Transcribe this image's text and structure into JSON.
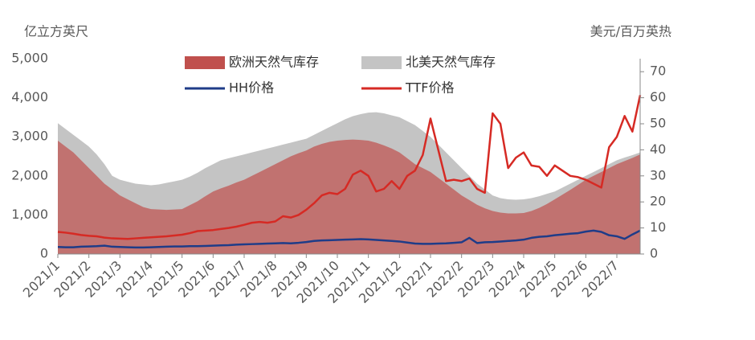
{
  "chart_data": {
    "type": "line",
    "y_label": "亿立方英尺",
    "y2_label": "美元/百万英热",
    "categories": [
      "2021/1",
      null,
      null,
      null,
      "2021/2",
      null,
      null,
      null,
      "2021/3",
      null,
      null,
      null,
      "2021/4",
      null,
      null,
      null,
      "2021/5",
      null,
      null,
      null,
      "2021/6",
      null,
      null,
      null,
      "2021/7",
      null,
      null,
      null,
      "2021/8",
      null,
      null,
      null,
      "2021/9",
      null,
      null,
      null,
      "2021/10",
      null,
      null,
      null,
      "2021/11",
      null,
      null,
      null,
      "2021/12",
      null,
      null,
      null,
      "2022/1",
      null,
      null,
      null,
      "2022/2",
      null,
      null,
      null,
      "2022/3",
      null,
      null,
      null,
      "2022/4",
      null,
      null,
      null,
      "2022/5",
      null,
      null,
      null,
      "2022/6",
      null,
      null,
      null,
      "2022/7",
      null,
      null,
      null
    ],
    "ylim": [
      0,
      5000
    ],
    "yticks": [
      0,
      {
        "value": 1000,
        "label": "1,000"
      },
      {
        "value": 2000,
        "label": "2,000"
      },
      {
        "value": 3000,
        "label": "3,000"
      },
      {
        "value": 4000,
        "label": "4,000"
      },
      {
        "value": 5000,
        "label": "5,000"
      }
    ],
    "y2lim": [
      0,
      75
    ],
    "y2ticks": [
      0,
      10,
      20,
      30,
      40,
      50,
      60,
      70
    ],
    "series": [
      {
        "name": "北美天然气库存",
        "type": "area",
        "color": "#c4c4c4",
        "values": [
          3350,
          3200,
          3050,
          2900,
          2750,
          2550,
          2300,
          2000,
          1900,
          1850,
          1800,
          1780,
          1760,
          1780,
          1820,
          1860,
          1900,
          1980,
          2080,
          2200,
          2300,
          2400,
          2450,
          2500,
          2550,
          2600,
          2650,
          2700,
          2750,
          2800,
          2850,
          2900,
          2950,
          3050,
          3150,
          3250,
          3350,
          3450,
          3530,
          3580,
          3620,
          3630,
          3600,
          3550,
          3500,
          3400,
          3300,
          3150,
          3000,
          2800,
          2600,
          2400,
          2200,
          2000,
          1800,
          1650,
          1500,
          1430,
          1400,
          1390,
          1400,
          1430,
          1480,
          1540,
          1600,
          1700,
          1800,
          1900,
          2000,
          2100,
          2200,
          2300,
          2400,
          2470,
          2530,
          2600
        ]
      },
      {
        "name": "欧洲天然气库存",
        "type": "area",
        "color": "#c0504d",
        "values": [
          2900,
          2750,
          2600,
          2400,
          2200,
          2000,
          1800,
          1650,
          1500,
          1400,
          1300,
          1200,
          1150,
          1140,
          1130,
          1140,
          1150,
          1250,
          1350,
          1480,
          1600,
          1680,
          1750,
          1830,
          1900,
          2000,
          2100,
          2200,
          2300,
          2400,
          2500,
          2580,
          2650,
          2750,
          2820,
          2870,
          2900,
          2920,
          2930,
          2920,
          2900,
          2850,
          2780,
          2700,
          2600,
          2450,
          2300,
          2200,
          2100,
          1950,
          1800,
          1650,
          1500,
          1380,
          1260,
          1170,
          1100,
          1060,
          1040,
          1040,
          1050,
          1100,
          1180,
          1280,
          1400,
          1520,
          1640,
          1770,
          1900,
          2000,
          2100,
          2200,
          2300,
          2380,
          2460,
          2550
        ]
      },
      {
        "name": "HH价格",
        "type": "line",
        "axis": "y2",
        "color": "#1f3c88",
        "values": [
          2.7,
          2.6,
          2.6,
          2.8,
          2.9,
          3.0,
          3.2,
          2.8,
          2.7,
          2.6,
          2.5,
          2.5,
          2.6,
          2.7,
          2.8,
          2.9,
          2.9,
          3.0,
          3.0,
          3.1,
          3.2,
          3.3,
          3.4,
          3.6,
          3.7,
          3.8,
          3.9,
          4.0,
          4.1,
          4.2,
          4.1,
          4.3,
          4.6,
          5.0,
          5.2,
          5.3,
          5.4,
          5.5,
          5.6,
          5.7,
          5.6,
          5.4,
          5.2,
          5.0,
          4.8,
          4.4,
          4.0,
          3.9,
          3.9,
          4.0,
          4.1,
          4.3,
          4.5,
          6.2,
          4.2,
          4.5,
          4.6,
          4.8,
          5.0,
          5.2,
          5.5,
          6.2,
          6.6,
          6.8,
          7.2,
          7.5,
          7.8,
          8.0,
          8.6,
          9.0,
          8.5,
          7.2,
          6.8,
          5.8,
          7.5,
          9.0
        ]
      },
      {
        "name": "TTF价格",
        "type": "line",
        "axis": "y2",
        "color": "#d62a24",
        "values": [
          8.5,
          8.2,
          7.8,
          7.3,
          7.0,
          6.8,
          6.3,
          6.0,
          5.9,
          5.8,
          6.0,
          6.2,
          6.4,
          6.6,
          6.8,
          7.1,
          7.4,
          8.0,
          8.8,
          9.0,
          9.2,
          9.6,
          10.0,
          10.5,
          11.2,
          12.0,
          12.3,
          12.0,
          12.5,
          14.5,
          14.0,
          15.0,
          17.0,
          19.5,
          22.5,
          23.5,
          23.0,
          25.0,
          30.5,
          32.0,
          30.0,
          24.0,
          25.0,
          28.0,
          25.0,
          30.0,
          32.0,
          38.0,
          52.0,
          40.0,
          28.0,
          28.5,
          28.0,
          29.0,
          25.0,
          23.5,
          54.0,
          50.0,
          33.0,
          37.0,
          39.0,
          34.0,
          33.5,
          30.0,
          34.0,
          32.0,
          30.0,
          29.5,
          28.5,
          27.0,
          25.5,
          41.0,
          45.0,
          53.0,
          47.0,
          61.0
        ]
      }
    ]
  }
}
